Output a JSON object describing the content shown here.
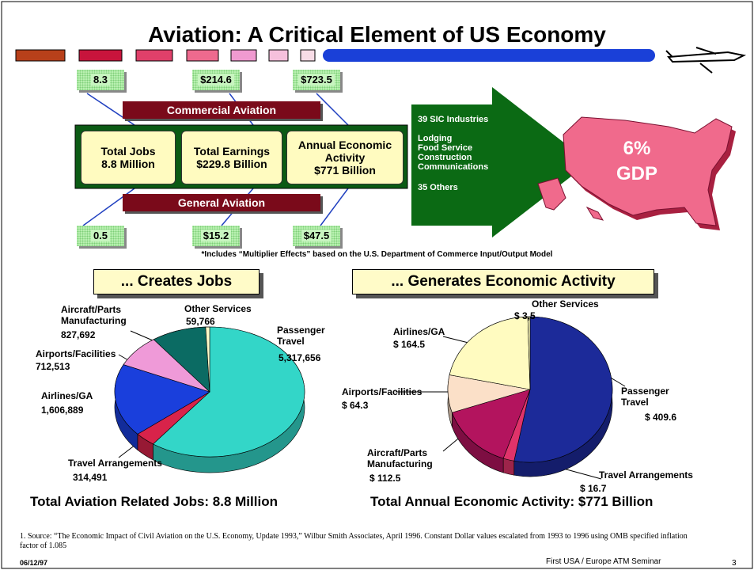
{
  "title": "Aviation: A Critical Element of US Economy",
  "commercial": {
    "label": "Commercial Aviation",
    "values": [
      "8.3",
      "$214.6",
      "$723.5"
    ]
  },
  "general": {
    "label": "General Aviation",
    "values": [
      "0.5",
      "$15.2",
      "$47.5"
    ]
  },
  "boxes": [
    [
      "Total Jobs",
      "8.8 Million"
    ],
    [
      "Total Earnings",
      "$229.8 Billion"
    ],
    [
      "Annual Economic Activity",
      "$771 Billion"
    ]
  ],
  "arrow": {
    "lines": [
      "39 SIC Industries",
      "Lodging",
      "Food Service",
      "Construction",
      "Communications",
      "35 Others"
    ]
  },
  "map": {
    "lines": [
      "6%",
      "GDP"
    ]
  },
  "footnote": "*Includes “Multiplier Effects” based on the U.S. Department of Commerce Input/Output Model",
  "chart_data": [
    {
      "type": "pie",
      "title": "... Creates Jobs",
      "caption": "Total Aviation Related Jobs: 8.8 Million",
      "categories": [
        "Passenger Travel",
        "Travel Arrangements",
        "Airlines/GA",
        "Airports/Facilities",
        "Aircraft/Parts Manufacturing",
        "Other Services"
      ],
      "values": [
        5317656,
        314491,
        1606889,
        712513,
        827692,
        59766
      ],
      "value_labels": [
        "5,317,656",
        "314,491",
        "1,606,889",
        "712,513",
        "827,692",
        "59,766"
      ],
      "colors": [
        "#33d6c8",
        "#d8234a",
        "#1a3fdc",
        "#ef9ad8",
        "#0b6b63",
        "#fffac8"
      ]
    },
    {
      "type": "pie",
      "title": "... Generates Economic Activity",
      "caption": "Total Annual Economic Activity: $771 Billion",
      "categories": [
        "Passenger Travel",
        "Travel Arrangements",
        "Aircraft/Parts Manufacturing",
        "Airports/Facilities",
        "Airlines/GA",
        "Other Services"
      ],
      "values": [
        409.6,
        16.7,
        112.5,
        64.3,
        164.5,
        3.5
      ],
      "value_labels": [
        "$ 409.6",
        "$ 16.7",
        "$ 112.5",
        "$ 64.3",
        "$ 164.5",
        "$ 3,5"
      ],
      "colors": [
        "#1c2a99",
        "#e0336a",
        "#b3145e",
        "#fbe0c8",
        "#fffbc0",
        "#fffbc0"
      ]
    }
  ],
  "source": "1. Source: “The Economic Impact of Civil Aviation on the U.S. Economy, Update 1993,” Wilbur Smith Associates, April 1996. Constant Dollar values escalated from 1993 to 1996 using OMB specified inflation factor of 1.085",
  "footer": {
    "date": "06/12/97",
    "org": "First USA / Europe ATM Seminar",
    "page": "3"
  }
}
